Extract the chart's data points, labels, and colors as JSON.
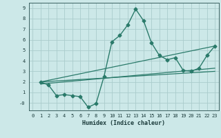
{
  "xlabel": "Humidex (Indice chaleur)",
  "ylabel": "",
  "bg_color": "#cce8e8",
  "grid_color": "#aacccc",
  "line_color": "#2a7a6a",
  "xlim": [
    -0.5,
    23.5
  ],
  "ylim": [
    -0.7,
    9.5
  ],
  "xticks": [
    0,
    1,
    2,
    3,
    4,
    5,
    6,
    7,
    8,
    9,
    10,
    11,
    12,
    13,
    14,
    15,
    16,
    17,
    18,
    19,
    20,
    21,
    22,
    23
  ],
  "yticks": [
    0,
    1,
    2,
    3,
    4,
    5,
    6,
    7,
    8,
    9
  ],
  "ytick_labels": [
    "-0",
    "1",
    "2",
    "3",
    "4",
    "5",
    "6",
    "7",
    "8",
    "9"
  ],
  "series": [
    {
      "x": [
        1,
        2,
        3,
        4,
        5,
        6,
        7,
        8,
        9,
        10,
        11,
        12,
        13,
        14,
        15,
        16,
        17,
        18,
        19,
        20,
        21,
        22,
        23
      ],
      "y": [
        2.0,
        1.7,
        0.7,
        0.8,
        0.7,
        0.6,
        -0.4,
        -0.05,
        2.5,
        5.8,
        6.4,
        7.4,
        8.9,
        7.8,
        5.7,
        4.5,
        4.1,
        4.3,
        3.1,
        3.0,
        3.3,
        4.5,
        5.4
      ],
      "marker": "D",
      "markersize": 2.5,
      "linewidth": 1.0
    },
    {
      "x": [
        1,
        23
      ],
      "y": [
        2.0,
        5.4
      ],
      "marker": null,
      "markersize": 0,
      "linewidth": 0.9
    },
    {
      "x": [
        1,
        23
      ],
      "y": [
        1.8,
        3.3
      ],
      "marker": null,
      "markersize": 0,
      "linewidth": 0.9
    },
    {
      "x": [
        1,
        23
      ],
      "y": [
        2.0,
        3.0
      ],
      "marker": null,
      "markersize": 0,
      "linewidth": 0.9
    }
  ]
}
